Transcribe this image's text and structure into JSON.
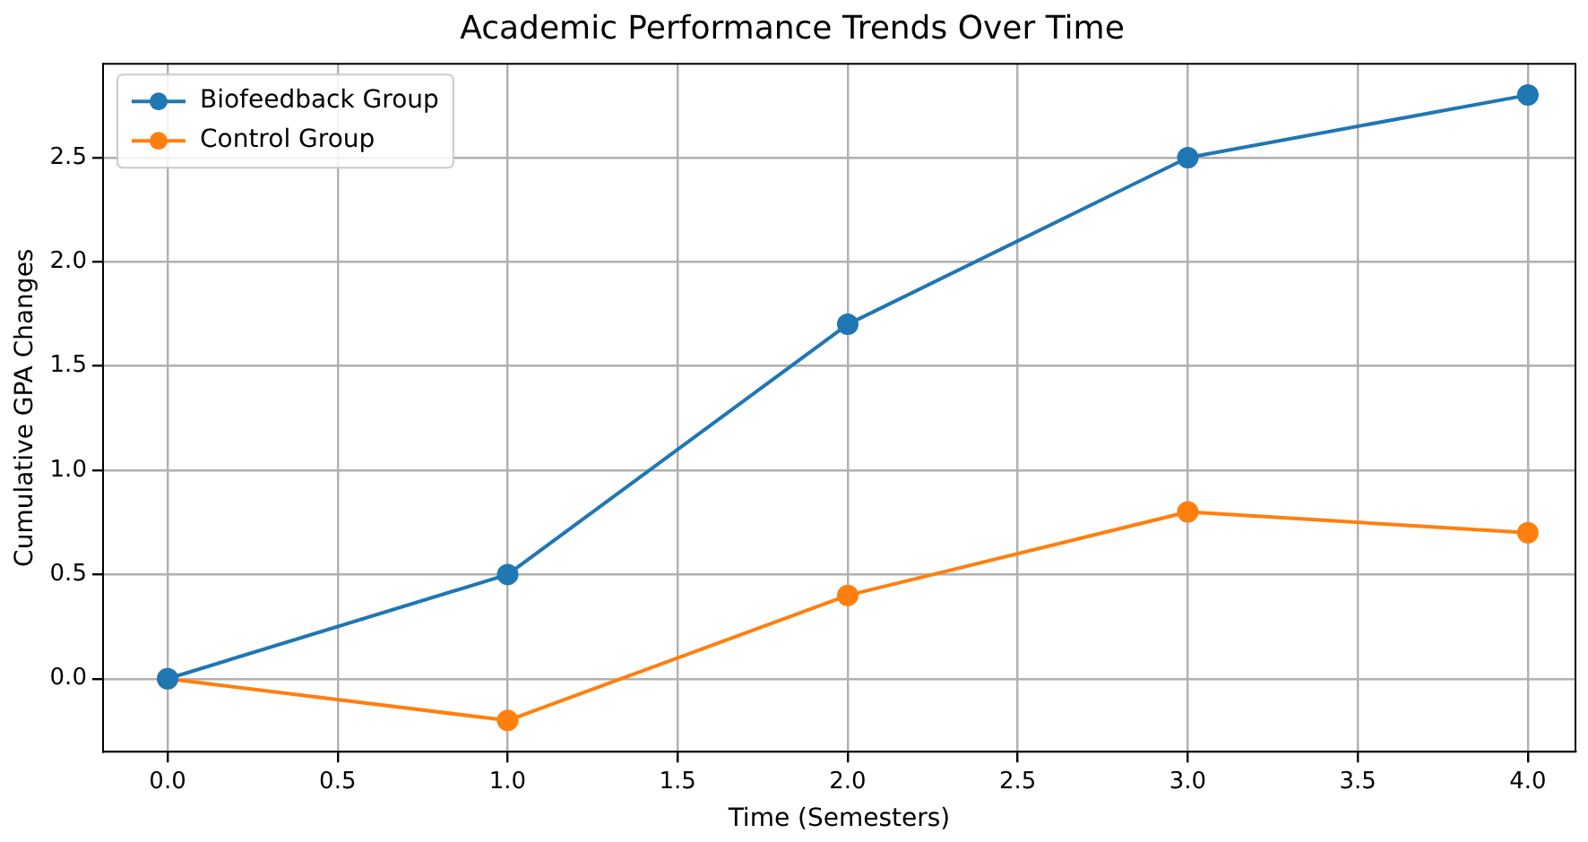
{
  "chart_data": {
    "type": "line",
    "title": "Academic Performance Trends Over Time",
    "xlabel": "Time (Semesters)",
    "ylabel": "Cumulative GPA Changes",
    "x": [
      0,
      1,
      2,
      3,
      4
    ],
    "series": [
      {
        "name": "Biofeedback Group",
        "color": "#1f77b4",
        "values": [
          0,
          0.5,
          1.7,
          2.5,
          2.8
        ]
      },
      {
        "name": "Control Group",
        "color": "#ff7f0e",
        "values": [
          0,
          -0.2,
          0.4,
          0.8,
          0.7
        ]
      }
    ],
    "xlim": [
      -0.19,
      4.14
    ],
    "xticks": [
      {
        "value": 0,
        "label": "0.0"
      },
      {
        "value": 0.5,
        "label": "0.5"
      },
      {
        "value": 1,
        "label": "1.0"
      },
      {
        "value": 1.5,
        "label": "1.5"
      },
      {
        "value": 2,
        "label": "2.0"
      },
      {
        "value": 2.5,
        "label": "2.5"
      },
      {
        "value": 3,
        "label": "3.0"
      },
      {
        "value": 3.5,
        "label": "3.5"
      },
      {
        "value": 4,
        "label": "4.0"
      }
    ],
    "ylim": [
      -0.35,
      2.95
    ],
    "yticks": [
      {
        "value": 0,
        "label": "0.0"
      },
      {
        "value": 0.5,
        "label": "0.5"
      },
      {
        "value": 1,
        "label": "1.0"
      },
      {
        "value": 1.5,
        "label": "1.5"
      },
      {
        "value": 2,
        "label": "2.0"
      },
      {
        "value": 2.5,
        "label": "2.5"
      }
    ],
    "grid": true,
    "legend": "top left",
    "marker": "circle",
    "line_style": "solid"
  }
}
